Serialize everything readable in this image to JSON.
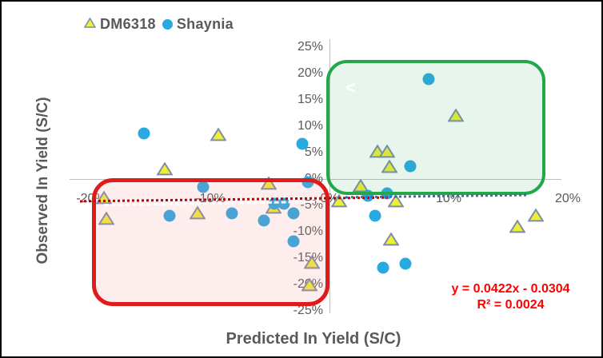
{
  "legend": {
    "items": [
      {
        "label": "DM6318",
        "marker": "triangle"
      },
      {
        "label": "Shaynia",
        "marker": "circle"
      }
    ]
  },
  "axes": {
    "x_title": "Predicted In Yield (S/C)",
    "y_title": "Observed In Yield (S/C)",
    "x_ticks": [
      -20,
      -10,
      0,
      10,
      20
    ],
    "y_ticks": [
      25,
      20,
      15,
      10,
      5,
      0,
      -5,
      -10,
      -15,
      -20,
      -25
    ],
    "tick_suffix": "%"
  },
  "annotations": {
    "trendline_equation": "y = 0.0422x - 0.0304",
    "r_squared_label": "R² = 0.0024",
    "chevron": "<"
  },
  "colors": {
    "dm6318_fill": "#F0EE36",
    "dm6318_stroke": "#7D8EA8",
    "shaynia_fill": "#29A9E1",
    "red_box_stroke": "#E01B1B",
    "green_box_stroke": "#23A747",
    "trendline_red": "#C00000",
    "trendline_blue": "#3B6DB5",
    "equation_text": "#FF0000",
    "axis_text": "#595959"
  },
  "chart_data": {
    "type": "scatter",
    "title": "",
    "xlabel": "Predicted In Yield (S/C)",
    "ylabel": "Observed In Yield (S/C)",
    "x_unit": "percent",
    "y_unit": "percent",
    "xlim": [
      -22,
      23
    ],
    "ylim": [
      -25,
      25
    ],
    "grid": "zero-axis-lines-only",
    "legend_position": "top-left",
    "series": [
      {
        "name": "DM6318",
        "marker": "triangle",
        "color": "#F0EE36",
        "points": [
          {
            "x": -18.9,
            "y": -3.6
          },
          {
            "x": -18.7,
            "y": -7.6
          },
          {
            "x": -13.8,
            "y": 1.8
          },
          {
            "x": -11.1,
            "y": -6.5
          },
          {
            "x": -9.3,
            "y": 8.3
          },
          {
            "x": -5.1,
            "y": -0.9
          },
          {
            "x": -4.7,
            "y": -5.5
          },
          {
            "x": -1.5,
            "y": -15.9
          },
          {
            "x": -1.7,
            "y": -20.2
          },
          {
            "x": 0.8,
            "y": -4.2
          },
          {
            "x": 2.6,
            "y": -1.4
          },
          {
            "x": 4.0,
            "y": 5.2
          },
          {
            "x": 4.8,
            "y": 5.2
          },
          {
            "x": 5.0,
            "y": 2.3
          },
          {
            "x": 5.6,
            "y": -4.2
          },
          {
            "x": 5.2,
            "y": -11.5
          },
          {
            "x": 10.6,
            "y": 12.0
          },
          {
            "x": 15.8,
            "y": -9.1
          },
          {
            "x": 17.3,
            "y": -7.0
          }
        ]
      },
      {
        "name": "Shaynia",
        "marker": "circle",
        "color": "#29A9E1",
        "points": [
          {
            "x": -15.6,
            "y": 8.6
          },
          {
            "x": -13.4,
            "y": -7.0
          },
          {
            "x": -10.6,
            "y": -1.5
          },
          {
            "x": -8.2,
            "y": -6.5
          },
          {
            "x": -5.5,
            "y": -7.9
          },
          {
            "x": -4.6,
            "y": -4.7
          },
          {
            "x": -3.8,
            "y": -4.7
          },
          {
            "x": -3.0,
            "y": -6.5
          },
          {
            "x": -3.0,
            "y": -11.8
          },
          {
            "x": -2.3,
            "y": 6.7
          },
          {
            "x": -1.8,
            "y": -0.6
          },
          {
            "x": 3.2,
            "y": -3.2
          },
          {
            "x": 4.8,
            "y": -2.7
          },
          {
            "x": 3.8,
            "y": -7.0
          },
          {
            "x": 6.8,
            "y": 2.4
          },
          {
            "x": 8.3,
            "y": 18.9
          },
          {
            "x": 4.5,
            "y": -16.8
          },
          {
            "x": 6.4,
            "y": -16.1
          }
        ]
      }
    ],
    "trendline": {
      "equation": "y = 0.0422x - 0.0304",
      "r2": 0.0024,
      "style": "dotted"
    },
    "highlight_boxes": [
      {
        "name": "negative-quadrant-box",
        "color": "red",
        "x_range": [
          -19.9,
          0
        ],
        "y_range": [
          -24.1,
          0.2
        ]
      },
      {
        "name": "positive-quadrant-box",
        "color": "green",
        "x_range": [
          -0.3,
          18.1
        ],
        "y_range": [
          -3.0,
          22.6
        ]
      }
    ]
  }
}
